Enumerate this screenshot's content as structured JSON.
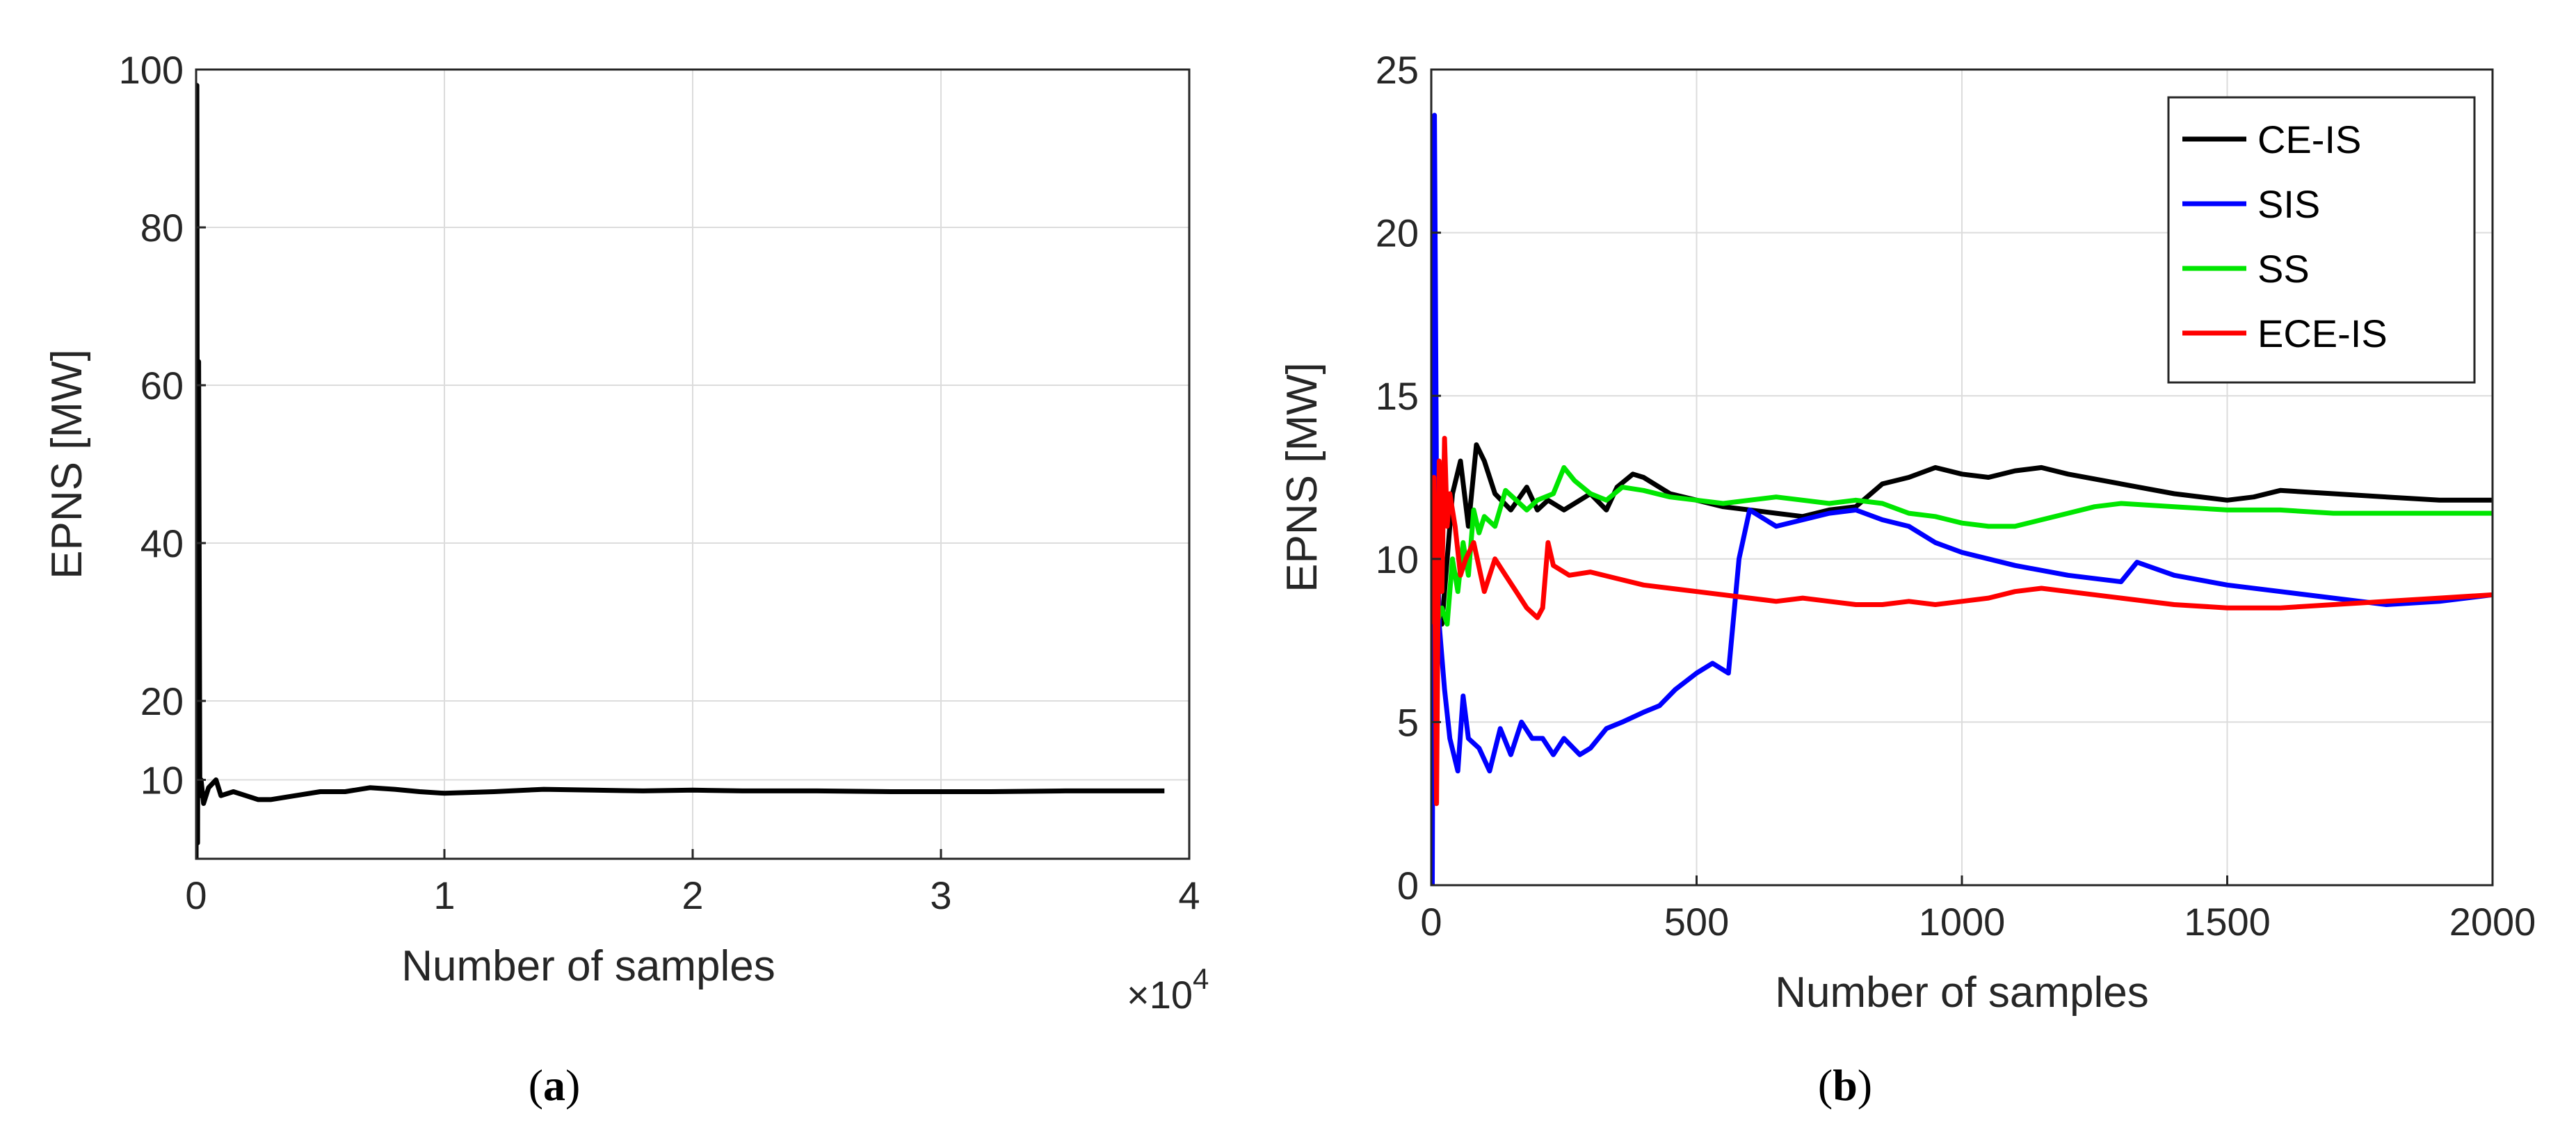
{
  "chart_data": [
    {
      "type": "line",
      "panel_label": "a",
      "caption_open": "(",
      "caption_close": ")",
      "title": "",
      "xlabel": "Number of samples",
      "ylabel": "EPNS [MW]",
      "x_multiplier_base": "×10",
      "x_multiplier_exp": "4",
      "xlim": [
        0,
        4
      ],
      "ylim": [
        0,
        100
      ],
      "xticks": [
        0,
        1,
        2,
        3,
        4
      ],
      "yticks": [
        10,
        20,
        40,
        60,
        80,
        100
      ],
      "grid": true,
      "series": [
        {
          "name": "ECE-IS",
          "color": "#000000",
          "x": [
            0,
            0.003,
            0.006,
            0.01,
            0.015,
            0.02,
            0.03,
            0.05,
            0.08,
            0.1,
            0.15,
            0.2,
            0.25,
            0.3,
            0.4,
            0.5,
            0.6,
            0.7,
            0.8,
            0.9,
            1.0,
            1.2,
            1.4,
            1.6,
            1.8,
            2.0,
            2.2,
            2.5,
            2.8,
            3.0,
            3.2,
            3.5,
            3.8,
            3.9
          ],
          "y": [
            0,
            98,
            2,
            63,
            8,
            10,
            7,
            9,
            10,
            8,
            8.5,
            8,
            7.5,
            7.5,
            8,
            8.5,
            8.5,
            9,
            8.8,
            8.5,
            8.3,
            8.5,
            8.8,
            8.7,
            8.6,
            8.7,
            8.6,
            8.6,
            8.5,
            8.5,
            8.5,
            8.6,
            8.6,
            8.6
          ]
        }
      ]
    },
    {
      "type": "line",
      "panel_label": "b",
      "caption_open": "(",
      "caption_close": ")",
      "title": "",
      "xlabel": "Number of samples",
      "ylabel": "EPNS [MW]",
      "xlim": [
        0,
        2000
      ],
      "ylim": [
        0,
        25
      ],
      "xticks": [
        0,
        500,
        1000,
        1500,
        2000
      ],
      "yticks": [
        0,
        5,
        10,
        15,
        20,
        25
      ],
      "grid": true,
      "legend_position": "top-right",
      "series": [
        {
          "name": "CE-IS",
          "color": "#000000",
          "x": [
            5,
            20,
            30,
            40,
            55,
            70,
            85,
            100,
            120,
            150,
            180,
            200,
            220,
            250,
            300,
            330,
            350,
            380,
            400,
            450,
            500,
            550,
            600,
            650,
            700,
            750,
            800,
            850,
            900,
            950,
            1000,
            1050,
            1100,
            1150,
            1200,
            1300,
            1400,
            1500,
            1550,
            1600,
            1700,
            1800,
            1900,
            2000
          ],
          "y": [
            9,
            8,
            10,
            12,
            13,
            11,
            13.5,
            13,
            12,
            11.5,
            12.2,
            11.5,
            11.8,
            11.5,
            12,
            11.5,
            12.2,
            12.6,
            12.5,
            12,
            11.8,
            11.6,
            11.5,
            11.4,
            11.3,
            11.5,
            11.6,
            12.3,
            12.5,
            12.8,
            12.6,
            12.5,
            12.7,
            12.8,
            12.6,
            12.3,
            12.0,
            11.8,
            11.9,
            12.1,
            12.0,
            11.9,
            11.8,
            11.8
          ]
        },
        {
          "name": "SIS",
          "color": "#0000ff",
          "x": [
            2,
            6,
            10,
            15,
            25,
            35,
            50,
            60,
            70,
            90,
            110,
            130,
            150,
            170,
            190,
            210,
            230,
            250,
            280,
            300,
            330,
            360,
            400,
            430,
            460,
            500,
            530,
            560,
            580,
            600,
            650,
            700,
            750,
            800,
            850,
            900,
            950,
            1000,
            1100,
            1200,
            1300,
            1330,
            1400,
            1500,
            1600,
            1700,
            1800,
            1900,
            2000
          ],
          "y": [
            0,
            23.6,
            12,
            8,
            6,
            4.5,
            3.5,
            5.8,
            4.5,
            4.2,
            3.5,
            4.8,
            4,
            5,
            4.5,
            4.5,
            4,
            4.5,
            4,
            4.2,
            4.8,
            5,
            5.3,
            5.5,
            6,
            6.5,
            6.8,
            6.5,
            10,
            11.5,
            11,
            11.2,
            11.4,
            11.5,
            11.2,
            11,
            10.5,
            10.2,
            9.8,
            9.5,
            9.3,
            9.9,
            9.5,
            9.2,
            9.0,
            8.8,
            8.6,
            8.7,
            8.9
          ]
        },
        {
          "name": "SS",
          "color": "#00e600",
          "x": [
            10,
            20,
            30,
            40,
            50,
            60,
            70,
            80,
            90,
            100,
            120,
            140,
            160,
            180,
            200,
            230,
            250,
            270,
            300,
            330,
            360,
            400,
            450,
            500,
            550,
            600,
            650,
            700,
            750,
            800,
            850,
            900,
            950,
            1000,
            1050,
            1100,
            1150,
            1200,
            1250,
            1300,
            1400,
            1500,
            1600,
            1700,
            1800,
            1900,
            2000
          ],
          "y": [
            8,
            8.5,
            8,
            10,
            9,
            10.5,
            9.5,
            11.5,
            10.8,
            11.3,
            11,
            12.1,
            11.8,
            11.5,
            11.8,
            12,
            12.8,
            12.4,
            12,
            11.8,
            12.2,
            12.1,
            11.9,
            11.8,
            11.7,
            11.8,
            11.9,
            11.8,
            11.7,
            11.8,
            11.7,
            11.4,
            11.3,
            11.1,
            11.0,
            11.0,
            11.2,
            11.4,
            11.6,
            11.7,
            11.6,
            11.5,
            11.5,
            11.4,
            11.4,
            11.4,
            11.4
          ]
        },
        {
          "name": "ECE-IS",
          "color": "#ff0000",
          "x": [
            2,
            5,
            10,
            15,
            20,
            25,
            30,
            35,
            45,
            55,
            65,
            80,
            100,
            120,
            140,
            160,
            180,
            200,
            210,
            220,
            230,
            260,
            300,
            350,
            400,
            450,
            500,
            550,
            600,
            650,
            700,
            750,
            800,
            850,
            900,
            950,
            1000,
            1050,
            1100,
            1150,
            1200,
            1300,
            1400,
            1500,
            1600,
            1700,
            1800,
            1900,
            2000
          ],
          "y": [
            8,
            12.5,
            2.5,
            13,
            9,
            13.7,
            11,
            12,
            11,
            9.5,
            10,
            10.5,
            9,
            10,
            9.5,
            9,
            8.5,
            8.2,
            8.5,
            10.5,
            9.8,
            9.5,
            9.6,
            9.4,
            9.2,
            9.1,
            9.0,
            8.9,
            8.8,
            8.7,
            8.8,
            8.7,
            8.6,
            8.6,
            8.7,
            8.6,
            8.7,
            8.8,
            9.0,
            9.1,
            9.0,
            8.8,
            8.6,
            8.5,
            8.5,
            8.6,
            8.7,
            8.8,
            8.9
          ]
        }
      ]
    }
  ]
}
